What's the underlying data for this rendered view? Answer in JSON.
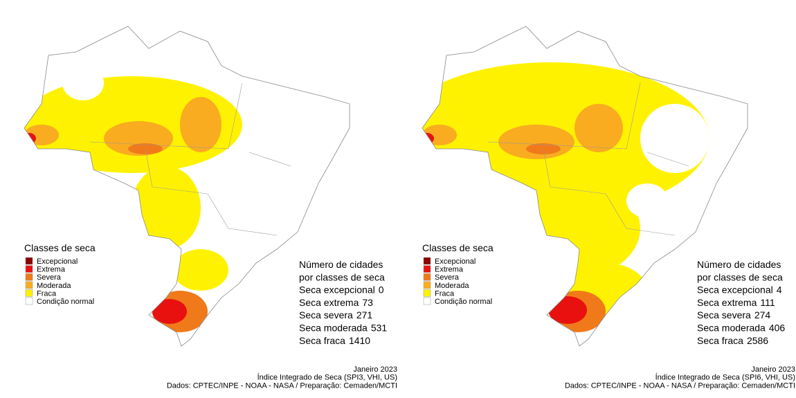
{
  "panels": [
    {
      "legend": {
        "title": "Classes de seca",
        "items": [
          {
            "label": "Excepcional",
            "color": "#8b0000"
          },
          {
            "label": "Extrema",
            "color": "#e8110f"
          },
          {
            "label": "Severa",
            "color": "#f07a1a"
          },
          {
            "label": "Moderada",
            "color": "#f9ac20"
          },
          {
            "label": "Fraca",
            "color": "#fff200"
          },
          {
            "label": "Condição normal",
            "color": "#ffffff"
          }
        ]
      },
      "stats": {
        "heading": [
          "Número de cidades",
          "por classes de seca"
        ],
        "rows": [
          {
            "label": "Seca excepcional",
            "value": 0
          },
          {
            "label": "Seca extrema",
            "value": 73
          },
          {
            "label": "Seca severa",
            "value": 271
          },
          {
            "label": "Seca moderada",
            "value": 531
          },
          {
            "label": "Seca fraca",
            "value": 1410
          }
        ]
      },
      "footer": [
        "Janeiro 2023",
        "Índice Integrado de Seca (SPI3, VHI, US)",
        "Dados: CPTEC/INPE - NOAA - NASA / Preparação: Cemaden/MCTI"
      ]
    },
    {
      "legend": {
        "title": "Classes de seca",
        "items": [
          {
            "label": "Excepcional",
            "color": "#8b0000"
          },
          {
            "label": "Extrema",
            "color": "#e8110f"
          },
          {
            "label": "Severa",
            "color": "#f07a1a"
          },
          {
            "label": "Moderada",
            "color": "#f9ac20"
          },
          {
            "label": "Fraca",
            "color": "#fff200"
          },
          {
            "label": "Condição normal",
            "color": "#ffffff"
          }
        ]
      },
      "stats": {
        "heading": [
          "Número de cidades",
          "por classes de seca"
        ],
        "rows": [
          {
            "label": "Seca excepcional",
            "value": 4
          },
          {
            "label": "Seca extrema",
            "value": 111
          },
          {
            "label": "Seca severa",
            "value": 274
          },
          {
            "label": "Seca moderada",
            "value": 406
          },
          {
            "label": "Seca fraca",
            "value": 2586
          }
        ]
      },
      "footer": [
        "Janeiro 2023",
        "Índice Integrado de Seca (SPI6, VHI, US)",
        "Dados: CPTEC/INPE - NOAA - NASA / Preparação: Cemaden/MCTI"
      ]
    }
  ]
}
